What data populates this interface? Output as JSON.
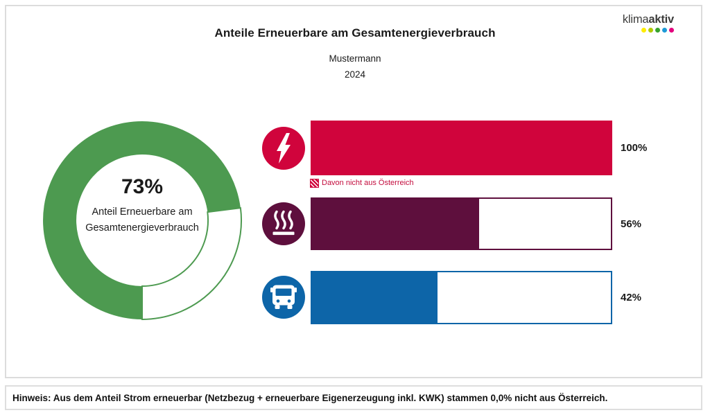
{
  "header": {
    "title": "Anteile Erneuerbare am Gesamtenergieverbrauch",
    "subtitle": "Mustermann",
    "year": "2024"
  },
  "logo": {
    "text_regular": "klima",
    "text_bold": "aktiv",
    "text_color": "#3c3c3b",
    "dot_colors": [
      "#ffed00",
      "#b1c903",
      "#36a22d",
      "#1d9ad7",
      "#e3007d"
    ]
  },
  "donut": {
    "value": 73,
    "percent_label": "73%",
    "caption_line1": "Anteil Erneuerbare am",
    "caption_line2": "Gesamtenergieverbrauch",
    "color": "#4d9a50",
    "rest_color": "#ffffff"
  },
  "bars": [
    {
      "category": "Strom",
      "icon": "lightning-icon",
      "value": 100,
      "value_label": "100%",
      "color": "#d0043c"
    },
    {
      "category": "Wärme",
      "icon": "heat-icon",
      "value": 56,
      "value_label": "56%",
      "color": "#5e0f3d"
    },
    {
      "category": "Mobilität",
      "icon": "bus-icon",
      "value": 42,
      "value_label": "42%",
      "color": "#0d65a8"
    }
  ],
  "legend": {
    "label": "Davon nicht aus Österreich",
    "text_color": "#c30b3c"
  },
  "footnote": {
    "text": "Hinweis: Aus dem Anteil Strom erneuerbar (Netzbezug + erneuerbare Eigenerzeugung inkl. KWK) stammen 0,0% nicht aus Österreich."
  },
  "chart_data": [
    {
      "type": "pie",
      "subtype": "donut",
      "title": "Anteile Erneuerbare am Gesamtenergieverbrauch",
      "subtitle": "Mustermann",
      "year": "2024",
      "labels": [
        "Anteil Erneuerbare am Gesamtenergieverbrauch",
        "Rest"
      ],
      "values": [
        73,
        27
      ],
      "colors": [
        "#4d9a50",
        "#ffffff"
      ],
      "center_label": "73%",
      "start_angle_deg_clockwise_from_top": 180
    },
    {
      "type": "bar",
      "orientation": "horizontal",
      "categories": [
        "Strom",
        "Wärme",
        "Mobilität"
      ],
      "icons": [
        "lightning-icon",
        "heat-icon",
        "bus-icon"
      ],
      "values": [
        100,
        56,
        42
      ],
      "unit": "%",
      "xlim": [
        0,
        100
      ],
      "colors": [
        "#d0043c",
        "#5e0f3d",
        "#0d65a8"
      ],
      "data_labels": [
        "100%",
        "56%",
        "42%"
      ],
      "legend_entries": [
        "Davon nicht aus Österreich"
      ],
      "grid": false
    }
  ]
}
